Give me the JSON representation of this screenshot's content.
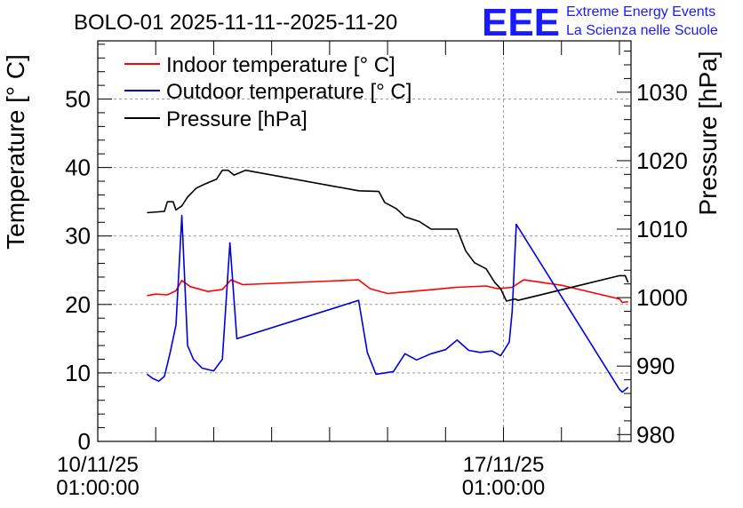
{
  "chart_data": {
    "type": "line",
    "title": "BOLO-01 2025-11-11--2025-11-20",
    "ylabel_left": "Temperature [° C]",
    "ylabel_right": "Pressure [hPa]",
    "ylim_left": [
      0,
      58.5
    ],
    "ylim_right": [
      979,
      1037.5
    ],
    "yticks_left": [
      0,
      10,
      20,
      30,
      40,
      50
    ],
    "yticks_right": [
      980,
      990,
      1000,
      1010,
      1020,
      1030
    ],
    "xlim_days": [
      0,
      9.2
    ],
    "xticks": [
      {
        "day": 0,
        "date": "10/11/25",
        "time": "01:00:00"
      },
      {
        "day": 7,
        "date": "17/11/25",
        "time": "01:00:00"
      }
    ],
    "grid": true,
    "legend": {
      "position": "top-left"
    },
    "series": [
      {
        "name": "Indoor temperature [° C]",
        "color": "#ff0000",
        "axis": "left",
        "points": [
          [
            0.85,
            21.3
          ],
          [
            1.0,
            21.5
          ],
          [
            1.2,
            21.4
          ],
          [
            1.35,
            22.0
          ],
          [
            1.45,
            23.5
          ],
          [
            1.6,
            22.6
          ],
          [
            1.9,
            21.9
          ],
          [
            2.15,
            22.2
          ],
          [
            2.3,
            23.6
          ],
          [
            2.5,
            22.9
          ],
          [
            4.5,
            23.6
          ],
          [
            4.7,
            22.3
          ],
          [
            5.0,
            21.6
          ],
          [
            5.4,
            21.9
          ],
          [
            5.8,
            22.2
          ],
          [
            6.2,
            22.5
          ],
          [
            6.7,
            22.7
          ],
          [
            6.9,
            22.3
          ],
          [
            7.15,
            22.5
          ],
          [
            7.35,
            23.6
          ],
          [
            8.0,
            22.8
          ],
          [
            9.0,
            20.8
          ],
          [
            9.05,
            20.3
          ],
          [
            9.15,
            20.4
          ]
        ]
      },
      {
        "name": "Outdoor temperature [° C]",
        "color": "#0000dd",
        "axis": "left",
        "points": [
          [
            0.85,
            9.8
          ],
          [
            0.95,
            9.2
          ],
          [
            1.05,
            8.8
          ],
          [
            1.15,
            9.5
          ],
          [
            1.25,
            13.0
          ],
          [
            1.35,
            17.0
          ],
          [
            1.45,
            33.0
          ],
          [
            1.55,
            14.0
          ],
          [
            1.65,
            12.0
          ],
          [
            1.8,
            10.7
          ],
          [
            2.0,
            10.3
          ],
          [
            2.15,
            12.0
          ],
          [
            2.28,
            29.0
          ],
          [
            2.4,
            15.0
          ],
          [
            4.5,
            20.6
          ],
          [
            4.65,
            13.0
          ],
          [
            4.8,
            9.8
          ],
          [
            5.1,
            10.2
          ],
          [
            5.3,
            12.8
          ],
          [
            5.5,
            11.9
          ],
          [
            5.75,
            12.8
          ],
          [
            6.0,
            13.4
          ],
          [
            6.2,
            14.8
          ],
          [
            6.4,
            13.3
          ],
          [
            6.6,
            13.0
          ],
          [
            6.8,
            13.2
          ],
          [
            6.95,
            12.5
          ],
          [
            7.1,
            14.5
          ],
          [
            7.15,
            19.0
          ],
          [
            7.22,
            31.7
          ],
          [
            9.0,
            7.6
          ],
          [
            9.05,
            7.2
          ],
          [
            9.15,
            7.9
          ]
        ]
      },
      {
        "name": "Pressure [hPa]",
        "color": "#000000",
        "axis": "right",
        "points": [
          [
            0.85,
            1012.4
          ],
          [
            1.15,
            1012.6
          ],
          [
            1.2,
            1014.0
          ],
          [
            1.3,
            1014.0
          ],
          [
            1.35,
            1012.8
          ],
          [
            1.45,
            1013.4
          ],
          [
            1.55,
            1014.7
          ],
          [
            1.7,
            1016.0
          ],
          [
            1.85,
            1016.6
          ],
          [
            2.05,
            1017.3
          ],
          [
            2.15,
            1018.6
          ],
          [
            2.25,
            1018.6
          ],
          [
            2.35,
            1017.9
          ],
          [
            2.55,
            1018.6
          ],
          [
            4.5,
            1015.6
          ],
          [
            4.85,
            1015.5
          ],
          [
            4.95,
            1013.9
          ],
          [
            5.15,
            1013.0
          ],
          [
            5.3,
            1011.8
          ],
          [
            5.55,
            1011.1
          ],
          [
            5.75,
            1010.0
          ],
          [
            6.2,
            1010.0
          ],
          [
            6.35,
            1006.8
          ],
          [
            6.5,
            1005.1
          ],
          [
            6.7,
            1004.2
          ],
          [
            6.85,
            1002.2
          ],
          [
            6.95,
            1001.3
          ],
          [
            7.05,
            999.5
          ],
          [
            7.2,
            999.8
          ],
          [
            7.25,
            999.6
          ],
          [
            9.0,
            1003.2
          ],
          [
            9.1,
            1003.2
          ],
          [
            9.15,
            1002.2
          ]
        ]
      }
    ]
  },
  "logo": {
    "mark": "EEE",
    "line1": "Extreme Energy Events",
    "line2": "La Scienza nelle Scuole"
  }
}
